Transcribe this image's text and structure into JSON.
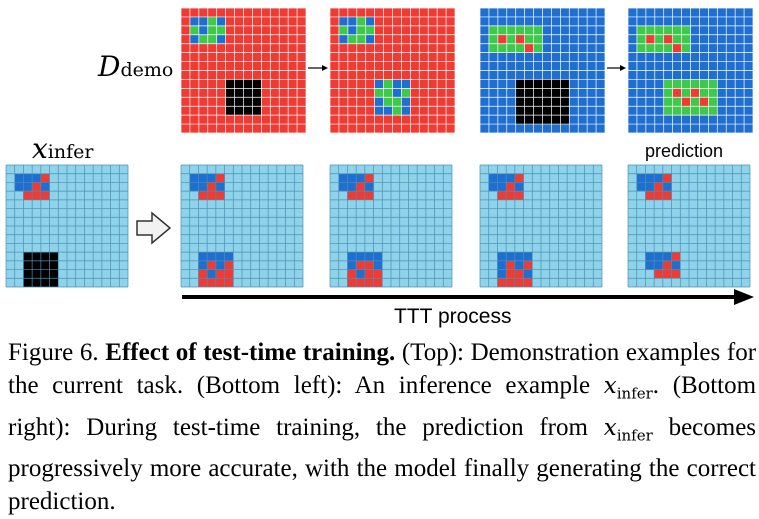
{
  "labels": {
    "d_demo_main": "D",
    "d_demo_sub": "demo",
    "x_infer_main": "x",
    "x_infer_sub": "infer",
    "prediction": "prediction",
    "ttt_process": "TTT process"
  },
  "caption": {
    "figure_number": "Figure 6.",
    "title": "Effect of test-time training.",
    "top_label": "(Top):",
    "top_text": "Demonstration examples for the current task.",
    "bottom_left_label": "(Bottom left):",
    "bottom_left_text": "An inference example",
    "math_main": "x",
    "math_sub": "infer",
    "bottom_right_label": "(Bottom right):",
    "bottom_right_text_1": "During test-time training, the prediction from",
    "bottom_right_text_2": "becomes progressively more accurate, with the model finally generating the correct prediction."
  },
  "colors": {
    "red_bg": "#ef3b33",
    "blue_bg": "#1f6fd1",
    "light_blue_bg": "#8fd3ea",
    "black": "#000000",
    "green": "#3fc94a",
    "blue_cell": "#1f6fd1",
    "red_cell": "#ef3b33",
    "grid_line_dark": "#ffffff",
    "grid_line_light": "#4a8fb5"
  },
  "grids": {
    "size": 14,
    "demo_input_1": {
      "bg": "red",
      "cells": [
        [
          1,
          1,
          "blue"
        ],
        [
          1,
          2,
          "blue"
        ],
        [
          1,
          3,
          "green"
        ],
        [
          1,
          4,
          "blue"
        ],
        [
          2,
          1,
          "green"
        ],
        [
          2,
          2,
          "blue"
        ],
        [
          2,
          3,
          "green"
        ],
        [
          2,
          4,
          "green"
        ],
        [
          3,
          1,
          "blue"
        ],
        [
          3,
          2,
          "green"
        ],
        [
          3,
          3,
          "green"
        ],
        [
          3,
          4,
          "blue"
        ]
      ],
      "black_box": [
        8,
        5,
        11,
        8
      ]
    },
    "demo_output_1": {
      "bg": "red",
      "cells": [
        [
          1,
          1,
          "blue"
        ],
        [
          1,
          2,
          "blue"
        ],
        [
          1,
          3,
          "green"
        ],
        [
          1,
          4,
          "blue"
        ],
        [
          2,
          1,
          "green"
        ],
        [
          2,
          2,
          "blue"
        ],
        [
          2,
          3,
          "green"
        ],
        [
          2,
          4,
          "green"
        ],
        [
          3,
          1,
          "blue"
        ],
        [
          3,
          2,
          "green"
        ],
        [
          3,
          3,
          "green"
        ],
        [
          3,
          4,
          "blue"
        ],
        [
          8,
          5,
          "blue"
        ],
        [
          8,
          6,
          "green"
        ],
        [
          8,
          7,
          "blue"
        ],
        [
          8,
          8,
          "blue"
        ],
        [
          9,
          5,
          "green"
        ],
        [
          9,
          6,
          "green"
        ],
        [
          9,
          7,
          "blue"
        ],
        [
          9,
          8,
          "green"
        ],
        [
          10,
          5,
          "blue"
        ],
        [
          10,
          6,
          "green"
        ],
        [
          10,
          7,
          "green"
        ],
        [
          10,
          8,
          "blue"
        ],
        [
          11,
          5,
          "blue"
        ],
        [
          11,
          6,
          "blue"
        ],
        [
          11,
          7,
          "green"
        ],
        [
          11,
          8,
          "blue"
        ]
      ]
    },
    "demo_input_2": {
      "bg": "blue",
      "cells": [
        [
          2,
          1,
          "green"
        ],
        [
          2,
          2,
          "green"
        ],
        [
          2,
          3,
          "green"
        ],
        [
          2,
          4,
          "green"
        ],
        [
          2,
          5,
          "green"
        ],
        [
          2,
          6,
          "green"
        ],
        [
          3,
          1,
          "green"
        ],
        [
          3,
          2,
          "red"
        ],
        [
          3,
          3,
          "green"
        ],
        [
          3,
          4,
          "red"
        ],
        [
          3,
          5,
          "green"
        ],
        [
          3,
          6,
          "green"
        ],
        [
          4,
          1,
          "green"
        ],
        [
          4,
          2,
          "green"
        ],
        [
          4,
          3,
          "green"
        ],
        [
          4,
          4,
          "green"
        ],
        [
          4,
          5,
          "red"
        ],
        [
          4,
          6,
          "green"
        ]
      ],
      "black_box": [
        8,
        4,
        12,
        9
      ]
    },
    "demo_output_2": {
      "bg": "blue",
      "cells": [
        [
          2,
          1,
          "green"
        ],
        [
          2,
          2,
          "green"
        ],
        [
          2,
          3,
          "green"
        ],
        [
          2,
          4,
          "green"
        ],
        [
          2,
          5,
          "green"
        ],
        [
          2,
          6,
          "green"
        ],
        [
          3,
          1,
          "green"
        ],
        [
          3,
          2,
          "red"
        ],
        [
          3,
          3,
          "green"
        ],
        [
          3,
          4,
          "red"
        ],
        [
          3,
          5,
          "green"
        ],
        [
          3,
          6,
          "green"
        ],
        [
          4,
          1,
          "green"
        ],
        [
          4,
          2,
          "green"
        ],
        [
          4,
          3,
          "green"
        ],
        [
          4,
          4,
          "green"
        ],
        [
          4,
          5,
          "red"
        ],
        [
          4,
          6,
          "green"
        ],
        [
          8,
          4,
          "green"
        ],
        [
          8,
          5,
          "green"
        ],
        [
          8,
          6,
          "green"
        ],
        [
          8,
          7,
          "green"
        ],
        [
          8,
          8,
          "green"
        ],
        [
          8,
          9,
          "green"
        ],
        [
          9,
          4,
          "green"
        ],
        [
          9,
          5,
          "red"
        ],
        [
          9,
          6,
          "green"
        ],
        [
          9,
          7,
          "red"
        ],
        [
          9,
          8,
          "green"
        ],
        [
          9,
          9,
          "green"
        ],
        [
          10,
          4,
          "green"
        ],
        [
          10,
          5,
          "green"
        ],
        [
          10,
          6,
          "red"
        ],
        [
          10,
          7,
          "green"
        ],
        [
          10,
          8,
          "red"
        ],
        [
          10,
          9,
          "green"
        ],
        [
          11,
          4,
          "green"
        ],
        [
          11,
          5,
          "green"
        ],
        [
          11,
          6,
          "green"
        ],
        [
          11,
          7,
          "green"
        ],
        [
          11,
          8,
          "green"
        ],
        [
          11,
          9,
          "green"
        ]
      ]
    },
    "infer_input": {
      "bg": "light",
      "cells": [
        [
          1,
          1,
          "blue"
        ],
        [
          1,
          2,
          "blue"
        ],
        [
          1,
          3,
          "blue"
        ],
        [
          1,
          4,
          "red"
        ],
        [
          2,
          1,
          "blue"
        ],
        [
          2,
          2,
          "blue"
        ],
        [
          2,
          3,
          "red"
        ],
        [
          2,
          4,
          "blue"
        ],
        [
          3,
          2,
          "red"
        ],
        [
          3,
          3,
          "red"
        ],
        [
          3,
          4,
          "red"
        ]
      ],
      "black_box": [
        10,
        2,
        13,
        5
      ]
    },
    "ttt_1": {
      "bg": "light",
      "cells": [
        [
          1,
          1,
          "blue"
        ],
        [
          1,
          2,
          "blue"
        ],
        [
          1,
          3,
          "blue"
        ],
        [
          1,
          4,
          "red"
        ],
        [
          2,
          1,
          "blue"
        ],
        [
          2,
          2,
          "blue"
        ],
        [
          2,
          3,
          "red"
        ],
        [
          2,
          4,
          "blue"
        ],
        [
          3,
          2,
          "red"
        ],
        [
          3,
          3,
          "red"
        ],
        [
          3,
          4,
          "red"
        ],
        [
          10,
          2,
          "blue"
        ],
        [
          10,
          3,
          "blue"
        ],
        [
          10,
          4,
          "blue"
        ],
        [
          10,
          5,
          "blue"
        ],
        [
          11,
          2,
          "blue"
        ],
        [
          11,
          3,
          "red"
        ],
        [
          11,
          4,
          "blue"
        ],
        [
          11,
          5,
          "red"
        ],
        [
          12,
          2,
          "red"
        ],
        [
          12,
          3,
          "blue"
        ],
        [
          12,
          4,
          "red"
        ],
        [
          12,
          5,
          "red"
        ],
        [
          13,
          2,
          "red"
        ],
        [
          13,
          3,
          "red"
        ],
        [
          13,
          4,
          "red"
        ],
        [
          13,
          5,
          "red"
        ]
      ]
    },
    "ttt_2": {
      "bg": "light",
      "cells": [
        [
          1,
          1,
          "blue"
        ],
        [
          1,
          2,
          "blue"
        ],
        [
          1,
          3,
          "blue"
        ],
        [
          1,
          4,
          "red"
        ],
        [
          2,
          1,
          "blue"
        ],
        [
          2,
          2,
          "blue"
        ],
        [
          2,
          3,
          "red"
        ],
        [
          2,
          4,
          "blue"
        ],
        [
          3,
          2,
          "red"
        ],
        [
          3,
          3,
          "red"
        ],
        [
          3,
          4,
          "red"
        ],
        [
          10,
          2,
          "blue"
        ],
        [
          10,
          3,
          "blue"
        ],
        [
          10,
          4,
          "blue"
        ],
        [
          10,
          5,
          "blue"
        ],
        [
          11,
          2,
          "blue"
        ],
        [
          11,
          3,
          "red"
        ],
        [
          11,
          4,
          "red"
        ],
        [
          11,
          5,
          "blue"
        ],
        [
          12,
          2,
          "red"
        ],
        [
          12,
          3,
          "blue"
        ],
        [
          12,
          4,
          "red"
        ],
        [
          12,
          5,
          "red"
        ],
        [
          13,
          2,
          "red"
        ],
        [
          13,
          3,
          "red"
        ],
        [
          13,
          4,
          "red"
        ],
        [
          13,
          5,
          "red"
        ]
      ]
    },
    "ttt_3": {
      "bg": "light",
      "cells": [
        [
          1,
          1,
          "blue"
        ],
        [
          1,
          2,
          "blue"
        ],
        [
          1,
          3,
          "blue"
        ],
        [
          1,
          4,
          "red"
        ],
        [
          2,
          1,
          "blue"
        ],
        [
          2,
          2,
          "blue"
        ],
        [
          2,
          3,
          "red"
        ],
        [
          2,
          4,
          "blue"
        ],
        [
          3,
          2,
          "red"
        ],
        [
          3,
          3,
          "red"
        ],
        [
          3,
          4,
          "red"
        ],
        [
          10,
          2,
          "blue"
        ],
        [
          10,
          3,
          "blue"
        ],
        [
          10,
          4,
          "blue"
        ],
        [
          10,
          5,
          "blue"
        ],
        [
          11,
          2,
          "blue"
        ],
        [
          11,
          3,
          "red"
        ],
        [
          11,
          4,
          "blue"
        ],
        [
          11,
          5,
          "red"
        ],
        [
          12,
          2,
          "blue"
        ],
        [
          12,
          3,
          "red"
        ],
        [
          12,
          4,
          "red"
        ],
        [
          12,
          5,
          "blue"
        ],
        [
          13,
          2,
          "red"
        ],
        [
          13,
          3,
          "red"
        ],
        [
          13,
          4,
          "red"
        ],
        [
          13,
          5,
          "red"
        ]
      ]
    },
    "ttt_4": {
      "bg": "light",
      "cells": [
        [
          1,
          1,
          "blue"
        ],
        [
          1,
          2,
          "blue"
        ],
        [
          1,
          3,
          "blue"
        ],
        [
          1,
          4,
          "red"
        ],
        [
          2,
          1,
          "blue"
        ],
        [
          2,
          2,
          "blue"
        ],
        [
          2,
          3,
          "red"
        ],
        [
          2,
          4,
          "blue"
        ],
        [
          3,
          2,
          "red"
        ],
        [
          3,
          3,
          "red"
        ],
        [
          3,
          4,
          "red"
        ],
        [
          10,
          2,
          "blue"
        ],
        [
          10,
          3,
          "blue"
        ],
        [
          10,
          4,
          "blue"
        ],
        [
          10,
          5,
          "red"
        ],
        [
          11,
          2,
          "blue"
        ],
        [
          11,
          3,
          "blue"
        ],
        [
          11,
          4,
          "red"
        ],
        [
          11,
          5,
          "blue"
        ],
        [
          12,
          3,
          "red"
        ],
        [
          12,
          4,
          "red"
        ],
        [
          12,
          5,
          "red"
        ]
      ]
    }
  }
}
